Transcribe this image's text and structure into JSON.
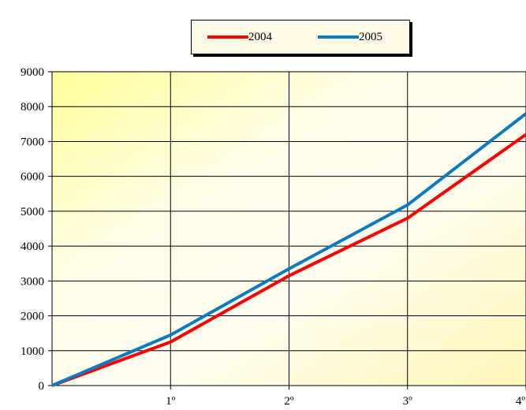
{
  "chart_data": {
    "type": "line",
    "categories": [
      "",
      "1º",
      "2º",
      "3º",
      "4º"
    ],
    "series": [
      {
        "name": "2004",
        "color": "#ff0000",
        "values": [
          0,
          1250,
          3150,
          4800,
          7200
        ]
      },
      {
        "name": "2005",
        "color": "#0a7bc2",
        "values": [
          0,
          1450,
          3350,
          5180,
          7800
        ]
      }
    ],
    "yticks": [
      0,
      1000,
      2000,
      3000,
      4000,
      5000,
      6000,
      7000,
      8000,
      9000
    ],
    "ylim": [
      0,
      9000
    ],
    "grid": true,
    "legend_position": "top-center",
    "plot_background": "#fffccc"
  }
}
